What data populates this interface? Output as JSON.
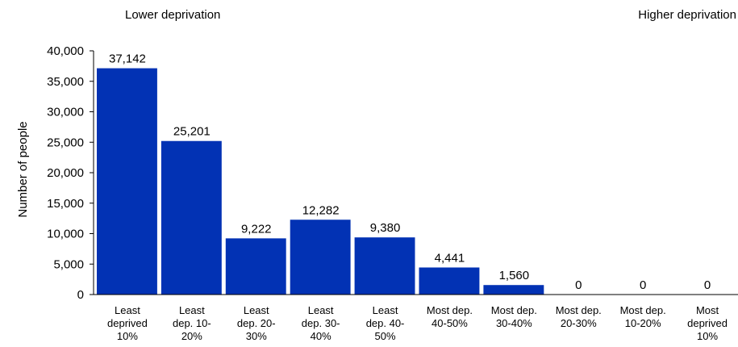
{
  "chart_data": {
    "type": "bar",
    "title": "",
    "xlabel": "",
    "ylabel": "Number of people",
    "ylim": [
      0,
      40000
    ],
    "yticks": [
      "0",
      "5,000",
      "10,000",
      "15,000",
      "20,000",
      "25,000",
      "30,000",
      "35,000",
      "40,000"
    ],
    "ytick_values": [
      0,
      5000,
      10000,
      15000,
      20000,
      25000,
      30000,
      35000,
      40000
    ],
    "categories": [
      [
        "Least",
        "deprived",
        "10%"
      ],
      [
        "Least",
        "dep. 10-",
        "20%"
      ],
      [
        "Least",
        "dep. 20-",
        "30%"
      ],
      [
        "Least",
        "dep. 30-",
        "40%"
      ],
      [
        "Least",
        "dep. 40-",
        "50%"
      ],
      [
        "Most dep.",
        "40-50%"
      ],
      [
        "Most dep.",
        "30-40%"
      ],
      [
        "Most dep.",
        "20-30%"
      ],
      [
        "Most dep.",
        "10-20%"
      ],
      [
        "Most",
        "deprived",
        "10%"
      ]
    ],
    "values": [
      37142,
      25201,
      9222,
      12282,
      9380,
      4441,
      1560,
      0,
      0,
      0
    ],
    "data_labels": [
      "37,142",
      "25,201",
      "9,222",
      "12,282",
      "9,380",
      "4,441",
      "1,560",
      "0",
      "0",
      "0"
    ],
    "bar_color": "#0232b4",
    "annotations": {
      "left": "Lower deprivation",
      "right": "Higher deprivation"
    },
    "grid": false,
    "legend": "none"
  }
}
